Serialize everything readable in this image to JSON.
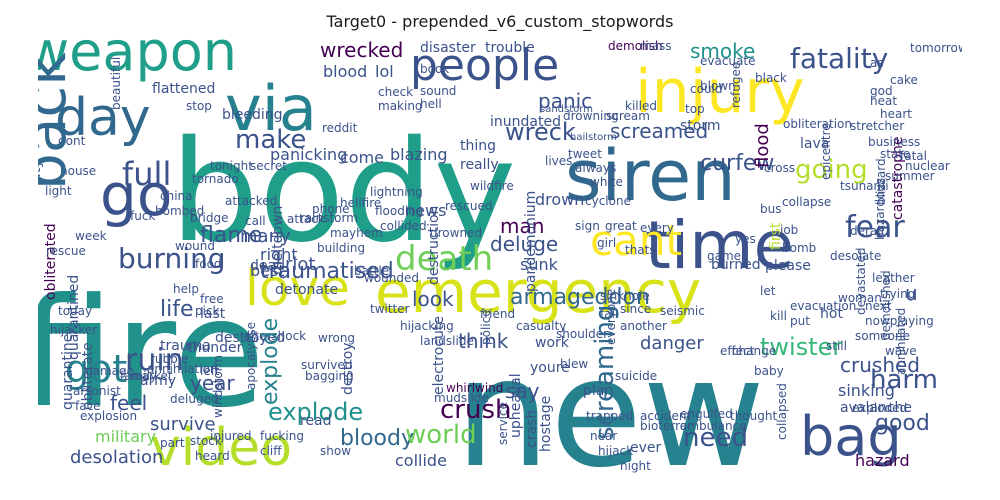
{
  "figure": {
    "title": "Target0 - prepended_v6_custom_stopwords"
  },
  "palette": {
    "dark_purple": "#440154",
    "indigo": "#3b528b",
    "blue": "#31688e",
    "teal_blue": "#26828e",
    "teal": "#21918c",
    "sea_green": "#1f9e89",
    "green": "#35b779",
    "lime": "#6ece58",
    "yellow_green": "#b5de2b",
    "yellow": "#d8e219",
    "bright_yellow": "#fde725"
  },
  "words": {
    "body": "body",
    "fire": "fire",
    "new": "new",
    "emergency": "emergency",
    "injury": "injury",
    "siren": "siren",
    "time": "time",
    "weapon": "weapon",
    "people": "people",
    "via": "via",
    "day": "day",
    "go": "go",
    "video": "video",
    "bag": "bag",
    "love": "love",
    "back": "back",
    "death": "death",
    "cant": "cant",
    "got": "got",
    "fatality": "fatality",
    "wrecked": "wrecked",
    "wreck": "wreck",
    "fear": "fear",
    "full": "full",
    "make": "make",
    "burning": "burning",
    "ruin": "ruin",
    "explode": "explode",
    "bloody": "bloody",
    "world": "world",
    "crush": "crush",
    "need": "need",
    "harm": "harm",
    "good": "good",
    "crushed": "crushed",
    "twister": "twister",
    "screaming": "screaming",
    "armageddon": "armageddon",
    "deluge": "deluge",
    "man": "man",
    "going": "going",
    "smoke": "smoke",
    "panic": "panic",
    "curfew": "curfew",
    "screamed": "screamed",
    "traumatised": "traumatised",
    "flame": "flame",
    "look": "look",
    "life": "life",
    "year": "year",
    "feel": "feel",
    "survive": "survive",
    "military": "military",
    "desolation": "desolation",
    "collide": "collide",
    "hazard": "hazard",
    "think": "think",
    "say": "say",
    "danger": "danger",
    "riot": "riot",
    "best": "best",
    "right": "right",
    "many": "many",
    "news": "news",
    "sunk": "sunk",
    "drown": "drown",
    "blazing": "blazing",
    "panicking": "panicking",
    "come": "come",
    "blood": "blood",
    "lol": "lol",
    "disaster": "disaster",
    "trouble": "trouble",
    "demolish": "demolish",
    "bleeding": "bleeding",
    "flattened": "flattened",
    "inundated": "inundated",
    "thing": "thing",
    "really": "really",
    "scream": "scream",
    "lava": "lava",
    "flood": "flood",
    "catastrophe": "catastrophe",
    "destroyed": "destroyed",
    "destroy": "destroy",
    "electrocute": "electrocute",
    "youre": "youre",
    "crash": "crash",
    "hostage": "hostage",
    "upheaval": "upheaval",
    "quarantine": "quarantine",
    "obliterate": "obliterate",
    "obliterated": "obliterated",
    "army": "army",
    "deluged": "deluged",
    "last": "last",
    "aftershock": "aftershock",
    "whirlwind": "whirlwind",
    "apocalypse": "apocalypse",
    "windstorm": "windstorm",
    "mudslide": "mudslide",
    "trapped": "trapped",
    "plan": "plan",
    "work": "work",
    "pandemonium": "pandemonium",
    "destruction": "destruction",
    "meltdown": "meltdown",
    "mayhem": "mayhem",
    "battle": "battle",
    "drowned": "drowned",
    "building": "building",
    "burned": "burned",
    "bomb": "bomb",
    "desolate": "desolate",
    "please": "please",
    "first": "first",
    "collapse": "collapse",
    "tsunami": "tsunami",
    "blizzard": "blizzard",
    "annihilated": "annihilated",
    "demolished": "demolished",
    "woman": "woman",
    "sinking": "sinking",
    "avalanche": "avalanche",
    "collapsed": "collapsed",
    "exploded": "exploded",
    "ever": "ever",
    "storm": "storm",
    "stretcher": "stretcher",
    "obliteration": "obliteration",
    "black": "black",
    "could": "could",
    "dead": "dead",
    "trauma": "trauma",
    "thunder": "thunder",
    "detonate": "detonate",
    "survived": "survived",
    "casualty": "casualty",
    "quarantined": "quarantined",
    "today": "today",
    "help": "help",
    "free": "free",
    "damage": "damage",
    "arsonist": "arsonist",
    "game": "game",
    "girl": "girl",
    "great": "great",
    "every": "every",
    "thats": "thats",
    "cross": "cross",
    "attack": "attack",
    "u": "u",
    "hot": "hot",
    "heart": "heart",
    "fall": "fall",
    "reddit": "reddit",
    "top": "top",
    "rescue": "rescue",
    "bombed": "bombed",
    "tornado": "tornado",
    "city": "city",
    "tonight": "tonight",
    "derail": "derail",
    "epicentre": "epicentre",
    "refugee": "refugee",
    "evacuate": "evacuate",
    "tomorrow": "tomorrow",
    "hellfire": "hellfire",
    "lightning": "lightning",
    "rainstorm": "rainstorm",
    "wounded": "wounded",
    "shoulder": "shoulder",
    "cyclone": "cyclone",
    "bioterror": "bioterror",
    "ambulance": "ambulance",
    "accident": "accident",
    "engulfed": "engulfed",
    "thought": "thought",
    "service": "service",
    "police": "police",
    "explosion": "explosion",
    "rubble": "rubble",
    "injured": "injured",
    "fucking": "fucking",
    "market": "market",
    "annihilation": "annihilation",
    "hijacker": "hijacker",
    "hijack": "hijack",
    "hijacking": "hijacking",
    "blew": "blew",
    "landslide": "landslide",
    "twitter": "twitter",
    "read": "read",
    "show": "show",
    "fatal": "fatal",
    "still": "still",
    "baby": "baby",
    "effect": "effect",
    "change": "change",
    "since": "since",
    "seismic": "seismic",
    "put": "put",
    "next": "next",
    "someone": "someone",
    "wave": "wave",
    "job": "job",
    "yes": "yes",
    "let": "let",
    "another": "another",
    "friend": "friend",
    "everyone": "everyone",
    "face": "face",
    "heard": "heard",
    "stock": "stock",
    "part": "part",
    "family": "family",
    "left": "left",
    "food": "food",
    "house": "house",
    "dont": "dont",
    "call": "call",
    "pick": "pick",
    "wound": "wound",
    "god": "god",
    "nuclear": "nuclear",
    "always": "always",
    "white": "white",
    "bridge": "bridge",
    "beautiful": "beautiful",
    "check": "check",
    "making": "making",
    "book": "book",
    "sound": "sound",
    "hell": "hell",
    "tweet": "tweet",
    "phone": "phone",
    "wrong": "wrong",
    "business": "business",
    "state": "state",
    "cake": "cake",
    "leather": "leather",
    "trying": "trying",
    "secret": "secret",
    "devastated": "devastated",
    "drowning": "drowning",
    "sandstorm": "sandstorm",
    "flooding": "flooding",
    "collided": "collided",
    "suicide": "suicide",
    "nowplaying": "nowplaying",
    "evacuation": "evacuation",
    "hailstorm": "hailstorm",
    "bagging": "bagging",
    "obliterated2": "obliterated",
    "explosion2": "explosion",
    "light": "light",
    "stop": "stop",
    "attacked": "attacked",
    "fuck": "fuck",
    "wildfire": "wildfire",
    "heat": "heat",
    "hazardous": "hazardous",
    "sinkhole": "sinkhole",
    "stretcher2": "stretcher",
    "blown": "blown",
    "mass": "mass",
    "killed": "killed",
    "as": "as",
    "week": "week",
    "year2": "year",
    "rescued": "rescued",
    "cliff": "cliff",
    "night": "night",
    "kill": "kill",
    "lives": "lives",
    "china": "china",
    "summer": "summer",
    "sign": "sign",
    "wildfire2": "wildfire",
    "fuck2": "fuck",
    "bus": "bus",
    "near": "near",
    "video2": "video"
  }
}
